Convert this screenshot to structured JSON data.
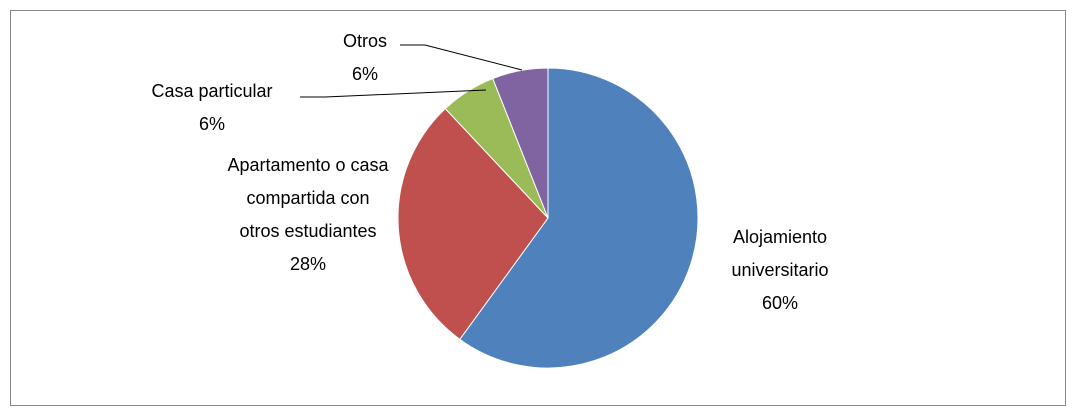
{
  "chart_data": {
    "type": "pie",
    "categories": [
      "Alojamiento universitario",
      "Apartamento o casa compartida con otros estudiantes",
      "Casa particular",
      "Otros"
    ],
    "values": [
      60,
      28,
      6,
      6
    ],
    "value_labels": [
      "60%",
      "28%",
      "6%",
      "6%"
    ],
    "colors": [
      "#4f81bd",
      "#c0504d",
      "#9bbb59",
      "#8064a2"
    ]
  }
}
